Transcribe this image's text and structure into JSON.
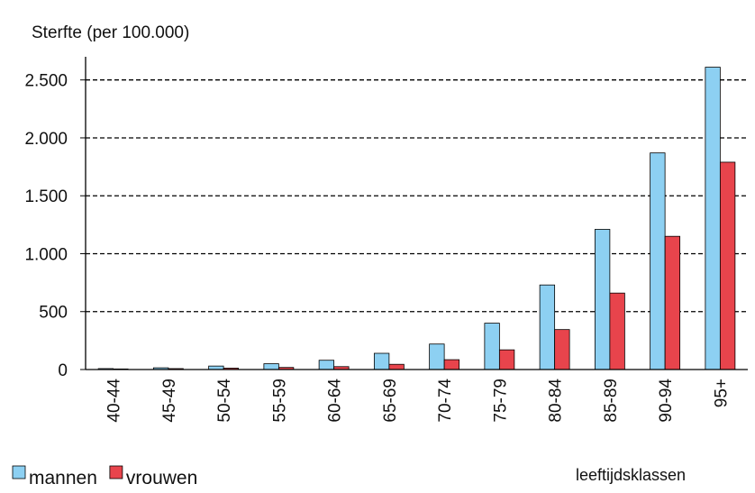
{
  "chart_data": {
    "type": "bar",
    "title": "Sterfte (per 100.000)",
    "x_label": "leeftijdsklassen",
    "categories": [
      "40-44",
      "45-49",
      "50-54",
      "55-59",
      "60-64",
      "65-69",
      "70-74",
      "75-79",
      "80-84",
      "85-89",
      "90-94",
      "95+"
    ],
    "series": [
      {
        "name": "mannen",
        "color": "#8dd0f2",
        "values": [
          8,
          15,
          30,
          50,
          80,
          140,
          220,
          400,
          730,
          1210,
          1870,
          2610
        ]
      },
      {
        "name": "vrouwen",
        "color": "#e8444c",
        "values": [
          5,
          8,
          12,
          18,
          25,
          45,
          85,
          170,
          345,
          660,
          1150,
          1790
        ]
      }
    ],
    "ylim": [
      0,
      2700
    ],
    "yticks": [
      0,
      500,
      {
        "value": 1000,
        "label": "1.000"
      },
      {
        "value": 1500,
        "label": "1.500"
      },
      {
        "value": 2000,
        "label": "2.000"
      },
      {
        "value": 2500,
        "label": "2.500"
      }
    ],
    "grid": true,
    "legend": "bottom-left"
  }
}
